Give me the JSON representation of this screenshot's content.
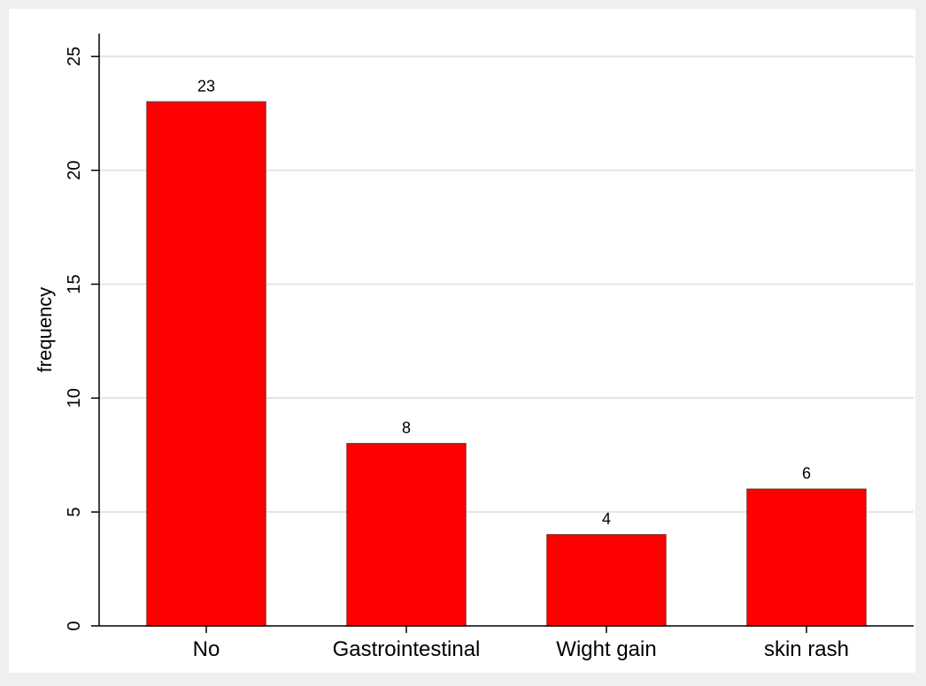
{
  "chart_data": {
    "type": "bar",
    "title": "",
    "xlabel": "",
    "ylabel": "frequency",
    "categories": [
      "No",
      "Gastrointestinal",
      "Wight gain",
      "skin rash"
    ],
    "values": [
      23,
      8,
      4,
      6
    ],
    "data_labels": [
      "23",
      "8",
      "4",
      "6"
    ],
    "ylim": [
      0,
      26
    ],
    "yticks": [
      0,
      5,
      10,
      15,
      20,
      25
    ],
    "ytick_labels": [
      "0",
      "5",
      "10",
      "15",
      "20",
      "25"
    ],
    "grid": true,
    "legend": "none",
    "colors": {
      "bar_fill": "#ff0000",
      "bar_stroke": "#8c2a2a",
      "plot_background": "#ffffff",
      "outer_background": "#efefef",
      "gridline": "#e4e4e4",
      "axis": "#000000"
    }
  }
}
